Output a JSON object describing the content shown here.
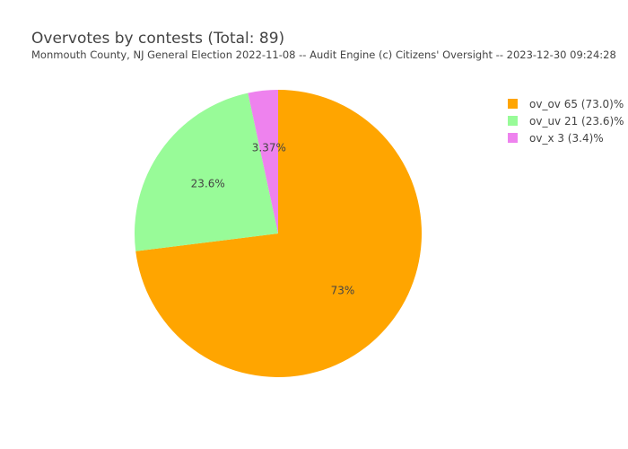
{
  "chart_data": {
    "type": "pie",
    "title": "Overvotes by contests (Total: 89)",
    "subtitle": "Monmouth County, NJ General Election 2022-11-08 -- Audit Engine (c) Citizens' Oversight -- 2023-12-30 09:24:28",
    "slices": [
      {
        "label": "ov_ov 65 (73.0)%",
        "value": 65,
        "percent_label": "73%",
        "color": "#FFA500"
      },
      {
        "label": "ov_uv 21 (23.6)%",
        "value": 21,
        "percent_label": "23.6%",
        "color": "#98FB98"
      },
      {
        "label": "ov_x 3 (3.4)%",
        "value": 3,
        "percent_label": "3.37%",
        "color": "#EE82EE"
      }
    ],
    "legend_position": "top-right"
  }
}
